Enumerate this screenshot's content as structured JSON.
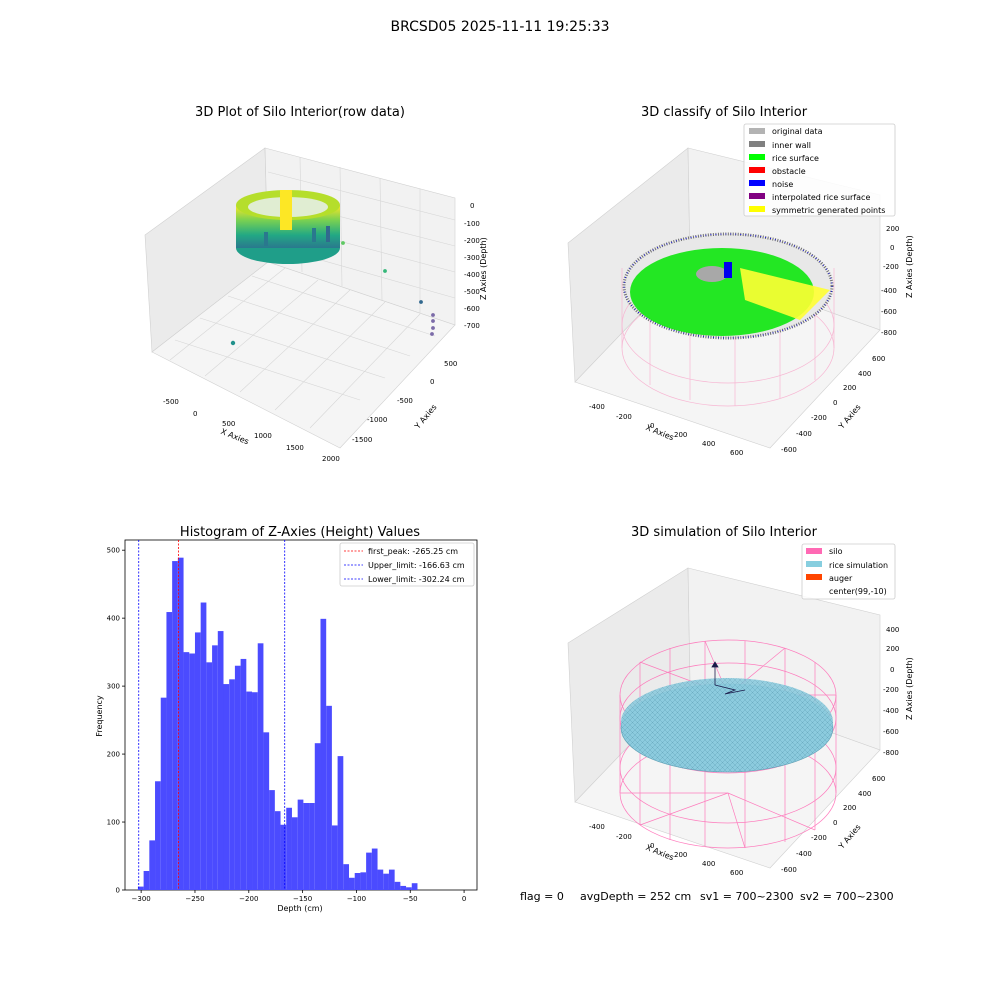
{
  "figure_title": "BRCSD05 2025-11-11 19:25:33",
  "footer": {
    "flag": "flag = 0",
    "avg_depth": "avgDepth = 252 cm",
    "sv1": "sv1 = 700~2300",
    "sv2": "sv2 = 700~2300"
  },
  "chart_data": [
    {
      "type": "scatter",
      "projection": "3d",
      "title": "3D Plot of Silo Interior(row data)",
      "xlabel": "X Axies",
      "ylabel": "Y Axies",
      "zlabel": "Z Axies (Depth)",
      "x_ticks": [
        "-500",
        "0",
        "500",
        "1000",
        "1500",
        "2000"
      ],
      "y_ticks": [
        "500",
        "0",
        "-500",
        "-1000",
        "-1500"
      ],
      "z_ticks": [
        "0",
        "-100",
        "-200",
        "-300",
        "-400",
        "-500",
        "-600",
        "-700"
      ],
      "colormap": "viridis",
      "outlier_points": [
        {
          "x": 1050,
          "y": 80,
          "z": -240,
          "color": "#5ec962"
        },
        {
          "x": 1550,
          "y": 120,
          "z": -420,
          "color": "#35b779"
        },
        {
          "x": 1850,
          "y": -500,
          "z": -580,
          "color": "#31688e"
        },
        {
          "x": 2000,
          "y": -800,
          "z": -650,
          "color": "#7b6ba8"
        },
        {
          "x": 2000,
          "y": -900,
          "z": -690,
          "color": "#7b6ba8"
        },
        {
          "x": 2000,
          "y": -1000,
          "z": -720,
          "color": "#7b6ba8"
        },
        {
          "x": -200,
          "y": -1500,
          "z": -760,
          "color": "#21918c"
        }
      ]
    },
    {
      "type": "scatter",
      "projection": "3d",
      "title": "3D classify of Silo Interior",
      "xlabel": "X Axies",
      "ylabel": "Y Axies",
      "zlabel": "Z Axies (Depth)",
      "x_ticks": [
        "-400",
        "-200",
        "0",
        "200",
        "400",
        "600"
      ],
      "y_ticks": [
        "600",
        "400",
        "200",
        "0",
        "-200",
        "-400",
        "-600"
      ],
      "z_ticks": [
        "200",
        "0",
        "-200",
        "-400",
        "-600",
        "-800"
      ],
      "legend_position": "top-right",
      "legend": [
        {
          "label": "original data",
          "color": "#b3b3b3"
        },
        {
          "label": "inner wall",
          "color": "#808080"
        },
        {
          "label": "rice surface",
          "color": "#00ff00"
        },
        {
          "label": "obstacle",
          "color": "#ff0000"
        },
        {
          "label": "noise",
          "color": "#0000ff"
        },
        {
          "label": "interpolated rice surface",
          "color": "#800080"
        },
        {
          "label": "symmetric generated points",
          "color": "#ffff00"
        }
      ]
    },
    {
      "type": "bar",
      "title": "Histogram of Z-Axies (Height) Values",
      "xlabel": "Depth (cm)",
      "ylabel": "Frequency",
      "xlim": [
        -315,
        12
      ],
      "ylim": [
        0,
        515
      ],
      "x_ticks": [
        -300,
        -250,
        -200,
        -150,
        -100,
        -50,
        0
      ],
      "y_ticks": [
        0,
        100,
        200,
        300,
        400,
        500
      ],
      "bar_color": "#4b4bff",
      "bin_start": -303,
      "bin_width": 5.3,
      "values": [
        5,
        28,
        73,
        160,
        283,
        409,
        484,
        489,
        350,
        348,
        379,
        423,
        335,
        360,
        381,
        303,
        310,
        330,
        340,
        292,
        291,
        363,
        232,
        147,
        116,
        96,
        121,
        107,
        133,
        128,
        128,
        216,
        399,
        271,
        95,
        197,
        38,
        18,
        25,
        26,
        55,
        61,
        30,
        24,
        30,
        12,
        6,
        4,
        10
      ],
      "legend_position": "top-right",
      "reference_lines": [
        {
          "label": "first_peak: -265.25 cm",
          "x": -265.25,
          "color": "#ff0000"
        },
        {
          "label": "Upper_limit: -166.63 cm",
          "x": -166.63,
          "color": "#0000ff"
        },
        {
          "label": "Lower_limit: -302.24 cm",
          "x": -302.24,
          "color": "#0000ff"
        }
      ]
    },
    {
      "type": "surface",
      "projection": "3d",
      "title": "3D simulation of Silo Interior",
      "xlabel": "X Axies",
      "ylabel": "Y Axies",
      "zlabel": "Z Axies (Depth)",
      "x_ticks": [
        "-400",
        "-200",
        "0",
        "200",
        "400",
        "600"
      ],
      "y_ticks": [
        "600",
        "400",
        "200",
        "0",
        "-200",
        "-400",
        "-600"
      ],
      "z_ticks": [
        "400",
        "200",
        "0",
        "-200",
        "-400",
        "-600",
        "-800"
      ],
      "legend_position": "top-right",
      "legend": [
        {
          "label": "silo",
          "color": "#ff69b4"
        },
        {
          "label": "rice simulation",
          "color": "#87cedf"
        },
        {
          "label": "auger",
          "color": "#ff4500"
        },
        {
          "label": "center(99,-10)",
          "color": "none"
        }
      ]
    }
  ]
}
